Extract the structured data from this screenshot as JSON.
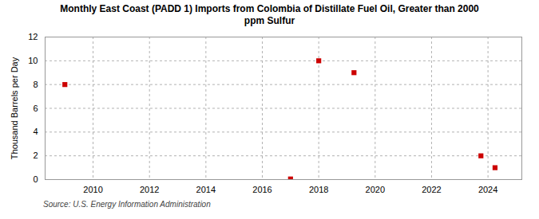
{
  "chart_data": {
    "type": "scatter",
    "title": "Monthly East Coast (PADD 1) Imports from Colombia of Distillate Fuel Oil, Greater than 2000\nppm Sulfur",
    "ylabel": "Thousand Barrels per Day",
    "source": "Source: U.S. Energy Information Administration",
    "x": [
      2009.0,
      2017.0,
      2018.0,
      2019.25,
      2023.75,
      2024.25
    ],
    "values": [
      8.0,
      0.05,
      10.0,
      9.0,
      2.0,
      1.0
    ],
    "color": "#cc0000",
    "marker": "square",
    "xlim": [
      2008.3,
      2025.2
    ],
    "ylim": [
      0,
      12
    ],
    "xticks": [
      2010,
      2012,
      2014,
      2016,
      2018,
      2020,
      2022,
      2024
    ],
    "yticks": [
      0,
      2,
      4,
      6,
      8,
      10,
      12
    ],
    "grid": true
  }
}
